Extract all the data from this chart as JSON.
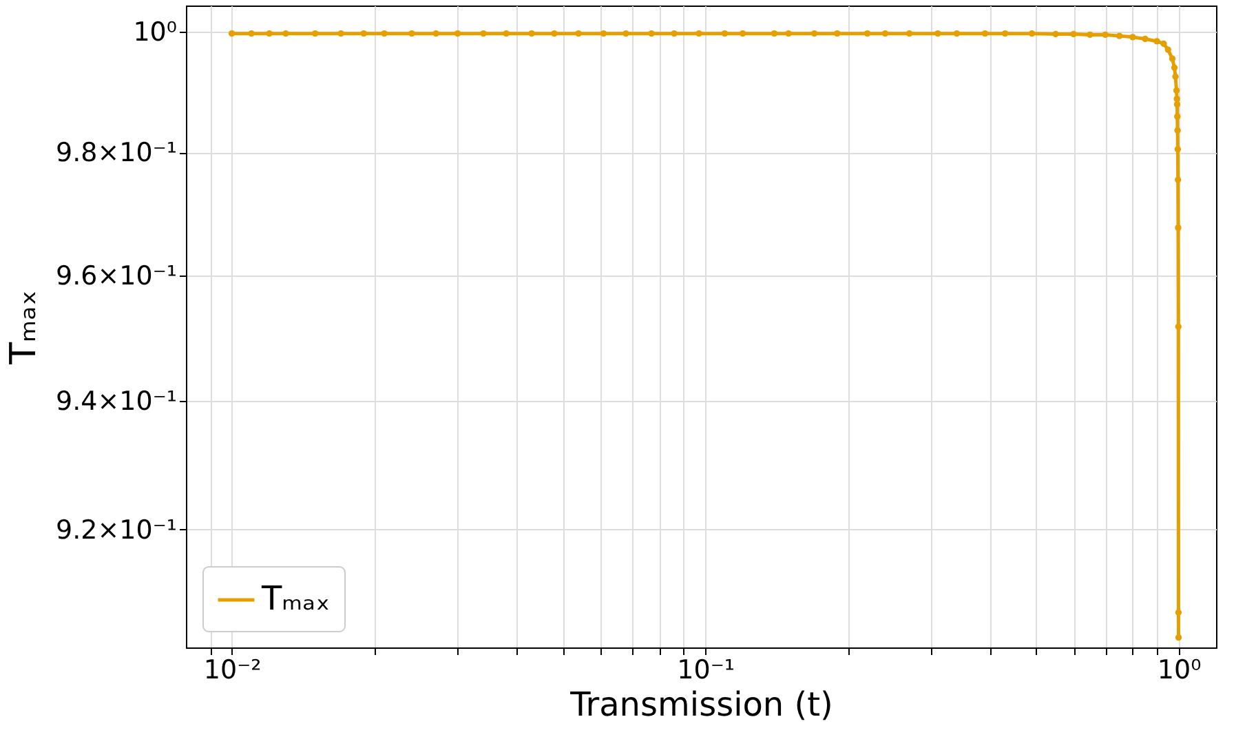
{
  "chart_data": {
    "type": "line",
    "xlabel": "Transmission (t)",
    "ylabel": "Tₘₐₓ",
    "x": [
      0.01,
      0.011,
      0.012,
      0.013,
      0.015,
      0.017,
      0.019,
      0.021,
      0.024,
      0.027,
      0.03,
      0.034,
      0.038,
      0.043,
      0.048,
      0.054,
      0.061,
      0.068,
      0.077,
      0.086,
      0.097,
      0.11,
      0.12,
      0.14,
      0.15,
      0.17,
      0.19,
      0.22,
      0.24,
      0.27,
      0.31,
      0.34,
      0.39,
      0.43,
      0.49,
      0.55,
      0.6,
      0.65,
      0.7,
      0.75,
      0.8,
      0.85,
      0.9,
      0.93,
      0.95,
      0.97,
      0.98,
      0.985,
      0.99,
      0.992,
      0.993,
      0.994,
      0.995,
      0.996,
      0.997,
      0.998,
      0.999,
      0.9995,
      0.9999
    ],
    "series": [
      {
        "name": "Tₘₐₓ",
        "color": "#e69f00",
        "values": [
          0.9997,
          0.9997,
          0.9997,
          0.9997,
          0.9997,
          0.9997,
          0.9997,
          0.9997,
          0.9997,
          0.9997,
          0.9997,
          0.9997,
          0.9997,
          0.9997,
          0.9997,
          0.9997,
          0.9997,
          0.9997,
          0.9997,
          0.9997,
          0.9997,
          0.9997,
          0.9997,
          0.9997,
          0.9997,
          0.9997,
          0.9997,
          0.9997,
          0.9997,
          0.9997,
          0.9997,
          0.9997,
          0.9997,
          0.9997,
          0.9997,
          0.9996,
          0.9996,
          0.9995,
          0.9995,
          0.9993,
          0.9991,
          0.9988,
          0.9984,
          0.998,
          0.997,
          0.9955,
          0.994,
          0.9925,
          0.9902,
          0.9888,
          0.9879,
          0.9859,
          0.9836,
          0.9805,
          0.9755,
          0.9677,
          0.9518,
          0.9073,
          0.9035
        ]
      }
    ],
    "xlim": [
      0.008,
      1.2
    ],
    "ylim": [
      0.902,
      1.0044
    ],
    "log": "xy",
    "xticks": [
      {
        "value": 0.01,
        "label": "10⁻²"
      },
      {
        "value": 0.02,
        "label": null
      },
      {
        "value": 0.03,
        "label": null
      },
      {
        "value": 0.04,
        "label": null
      },
      {
        "value": 0.05,
        "label": null
      },
      {
        "value": 0.06,
        "label": null
      },
      {
        "value": 0.07,
        "label": null
      },
      {
        "value": 0.08,
        "label": null
      },
      {
        "value": 0.09,
        "label": null
      },
      {
        "value": 0.1,
        "label": "10⁻¹"
      },
      {
        "value": 0.2,
        "label": null
      },
      {
        "value": 0.3,
        "label": null
      },
      {
        "value": 0.4,
        "label": null
      },
      {
        "value": 0.5,
        "label": null
      },
      {
        "value": 0.6,
        "label": null
      },
      {
        "value": 0.7,
        "label": null
      },
      {
        "value": 0.8,
        "label": null
      },
      {
        "value": 0.9,
        "label": null
      },
      {
        "value": 1,
        "label": "10⁰"
      },
      {
        "value": 0.009,
        "label": null
      }
    ],
    "yticks": [
      {
        "value": 0.92,
        "label": "9.2×10⁻¹"
      },
      {
        "value": 0.94,
        "label": "9.4×10⁻¹"
      },
      {
        "value": 0.96,
        "label": "9.6×10⁻¹"
      },
      {
        "value": 0.98,
        "label": "9.8×10⁻¹"
      },
      {
        "value": 1,
        "label": "10⁰"
      }
    ],
    "grid": true,
    "legend": "bottom left",
    "marker": "circle",
    "line_style": "solid"
  }
}
